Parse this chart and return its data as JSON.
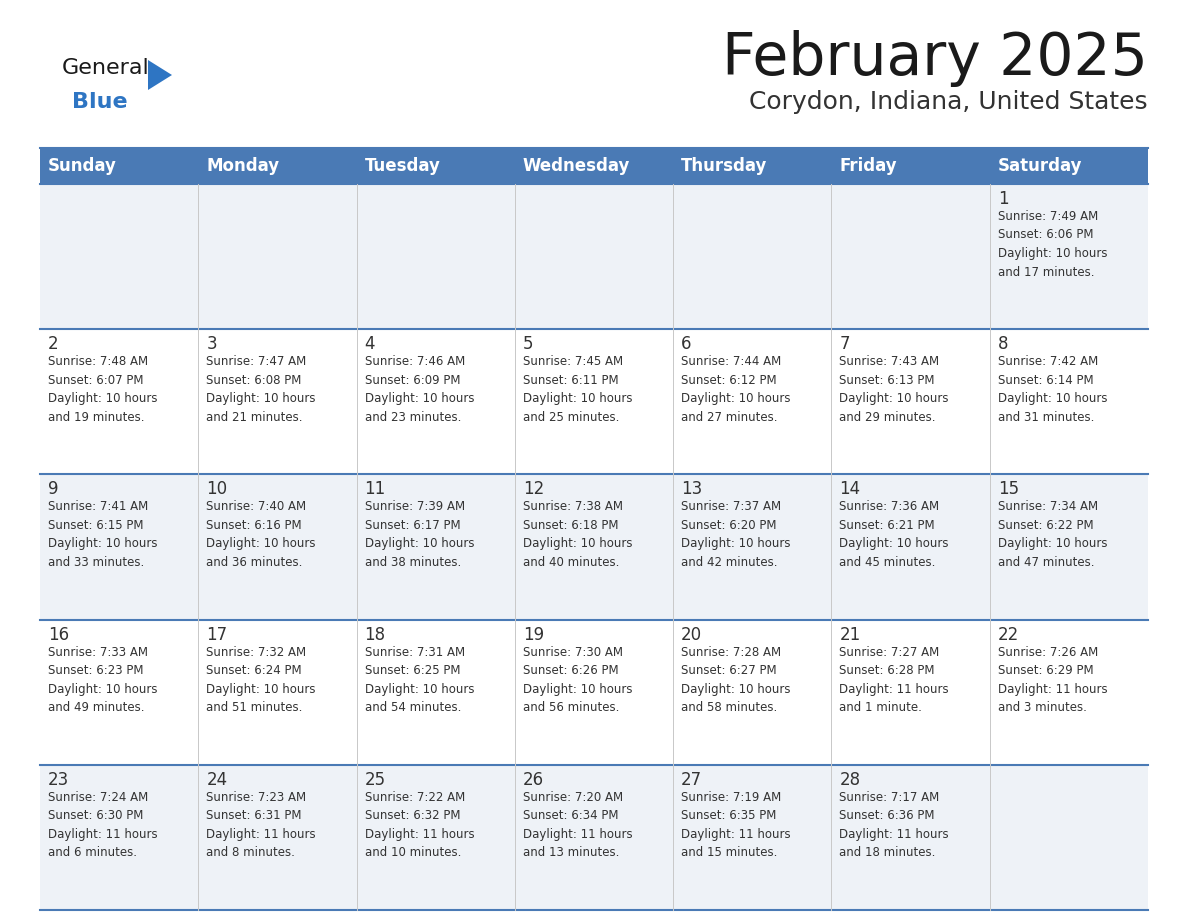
{
  "title": "February 2025",
  "subtitle": "Corydon, Indiana, United States",
  "days_of_week": [
    "Sunday",
    "Monday",
    "Tuesday",
    "Wednesday",
    "Thursday",
    "Friday",
    "Saturday"
  ],
  "header_bg": "#4a7ab5",
  "header_text": "#ffffff",
  "row_bg_even": "#eef2f7",
  "row_bg_odd": "#ffffff",
  "separator_color": "#4a7ab5",
  "day_number_color": "#333333",
  "info_text_color": "#333333",
  "title_color": "#1a1a1a",
  "subtitle_color": "#333333",
  "logo_general_color": "#1a1a1a",
  "logo_blue_color": "#2e75c3",
  "calendar_data": [
    [
      {
        "day": "",
        "info": ""
      },
      {
        "day": "",
        "info": ""
      },
      {
        "day": "",
        "info": ""
      },
      {
        "day": "",
        "info": ""
      },
      {
        "day": "",
        "info": ""
      },
      {
        "day": "",
        "info": ""
      },
      {
        "day": "1",
        "info": "Sunrise: 7:49 AM\nSunset: 6:06 PM\nDaylight: 10 hours\nand 17 minutes."
      }
    ],
    [
      {
        "day": "2",
        "info": "Sunrise: 7:48 AM\nSunset: 6:07 PM\nDaylight: 10 hours\nand 19 minutes."
      },
      {
        "day": "3",
        "info": "Sunrise: 7:47 AM\nSunset: 6:08 PM\nDaylight: 10 hours\nand 21 minutes."
      },
      {
        "day": "4",
        "info": "Sunrise: 7:46 AM\nSunset: 6:09 PM\nDaylight: 10 hours\nand 23 minutes."
      },
      {
        "day": "5",
        "info": "Sunrise: 7:45 AM\nSunset: 6:11 PM\nDaylight: 10 hours\nand 25 minutes."
      },
      {
        "day": "6",
        "info": "Sunrise: 7:44 AM\nSunset: 6:12 PM\nDaylight: 10 hours\nand 27 minutes."
      },
      {
        "day": "7",
        "info": "Sunrise: 7:43 AM\nSunset: 6:13 PM\nDaylight: 10 hours\nand 29 minutes."
      },
      {
        "day": "8",
        "info": "Sunrise: 7:42 AM\nSunset: 6:14 PM\nDaylight: 10 hours\nand 31 minutes."
      }
    ],
    [
      {
        "day": "9",
        "info": "Sunrise: 7:41 AM\nSunset: 6:15 PM\nDaylight: 10 hours\nand 33 minutes."
      },
      {
        "day": "10",
        "info": "Sunrise: 7:40 AM\nSunset: 6:16 PM\nDaylight: 10 hours\nand 36 minutes."
      },
      {
        "day": "11",
        "info": "Sunrise: 7:39 AM\nSunset: 6:17 PM\nDaylight: 10 hours\nand 38 minutes."
      },
      {
        "day": "12",
        "info": "Sunrise: 7:38 AM\nSunset: 6:18 PM\nDaylight: 10 hours\nand 40 minutes."
      },
      {
        "day": "13",
        "info": "Sunrise: 7:37 AM\nSunset: 6:20 PM\nDaylight: 10 hours\nand 42 minutes."
      },
      {
        "day": "14",
        "info": "Sunrise: 7:36 AM\nSunset: 6:21 PM\nDaylight: 10 hours\nand 45 minutes."
      },
      {
        "day": "15",
        "info": "Sunrise: 7:34 AM\nSunset: 6:22 PM\nDaylight: 10 hours\nand 47 minutes."
      }
    ],
    [
      {
        "day": "16",
        "info": "Sunrise: 7:33 AM\nSunset: 6:23 PM\nDaylight: 10 hours\nand 49 minutes."
      },
      {
        "day": "17",
        "info": "Sunrise: 7:32 AM\nSunset: 6:24 PM\nDaylight: 10 hours\nand 51 minutes."
      },
      {
        "day": "18",
        "info": "Sunrise: 7:31 AM\nSunset: 6:25 PM\nDaylight: 10 hours\nand 54 minutes."
      },
      {
        "day": "19",
        "info": "Sunrise: 7:30 AM\nSunset: 6:26 PM\nDaylight: 10 hours\nand 56 minutes."
      },
      {
        "day": "20",
        "info": "Sunrise: 7:28 AM\nSunset: 6:27 PM\nDaylight: 10 hours\nand 58 minutes."
      },
      {
        "day": "21",
        "info": "Sunrise: 7:27 AM\nSunset: 6:28 PM\nDaylight: 11 hours\nand 1 minute."
      },
      {
        "day": "22",
        "info": "Sunrise: 7:26 AM\nSunset: 6:29 PM\nDaylight: 11 hours\nand 3 minutes."
      }
    ],
    [
      {
        "day": "23",
        "info": "Sunrise: 7:24 AM\nSunset: 6:30 PM\nDaylight: 11 hours\nand 6 minutes."
      },
      {
        "day": "24",
        "info": "Sunrise: 7:23 AM\nSunset: 6:31 PM\nDaylight: 11 hours\nand 8 minutes."
      },
      {
        "day": "25",
        "info": "Sunrise: 7:22 AM\nSunset: 6:32 PM\nDaylight: 11 hours\nand 10 minutes."
      },
      {
        "day": "26",
        "info": "Sunrise: 7:20 AM\nSunset: 6:34 PM\nDaylight: 11 hours\nand 13 minutes."
      },
      {
        "day": "27",
        "info": "Sunrise: 7:19 AM\nSunset: 6:35 PM\nDaylight: 11 hours\nand 15 minutes."
      },
      {
        "day": "28",
        "info": "Sunrise: 7:17 AM\nSunset: 6:36 PM\nDaylight: 11 hours\nand 18 minutes."
      },
      {
        "day": "",
        "info": ""
      }
    ]
  ]
}
